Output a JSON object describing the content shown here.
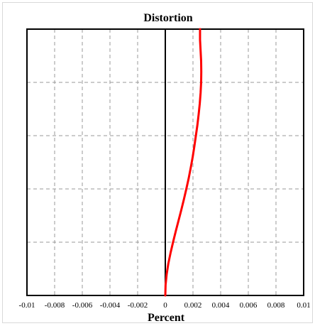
{
  "chart_data": {
    "type": "line",
    "title": "Distortion",
    "xlabel": "Percent",
    "ylabel": "",
    "xlim": [
      -0.01,
      0.01
    ],
    "ylim": [
      0,
      1
    ],
    "x_ticks": [
      "-0.01",
      "-0.008",
      "-0.006",
      "-0.004",
      "-0.002",
      "0",
      "0.002",
      "0.004",
      "0.006",
      "0.008",
      "0.01"
    ],
    "grid": true,
    "grid_style": "dashed",
    "series": [
      {
        "color": "#ff0000",
        "x": [
          0,
          2e-05,
          0.0001,
          0.00022,
          0.00038,
          0.00056,
          0.00075,
          0.00095,
          0.00115,
          0.00134,
          0.00152,
          0.00169,
          0.00184,
          0.00198,
          0.0021,
          0.00221,
          0.00232,
          0.00241,
          0.00249,
          0.00255,
          0.00259,
          0.0026,
          0.00259,
          0.00255,
          0.00251,
          0.00251
        ],
        "y": [
          0,
          0.04,
          0.08,
          0.12,
          0.16,
          0.2,
          0.24,
          0.28,
          0.32,
          0.36,
          0.4,
          0.44,
          0.48,
          0.52,
          0.56,
          0.6,
          0.64,
          0.68,
          0.72,
          0.76,
          0.8,
          0.84,
          0.88,
          0.92,
          0.96,
          1.0
        ]
      }
    ]
  }
}
